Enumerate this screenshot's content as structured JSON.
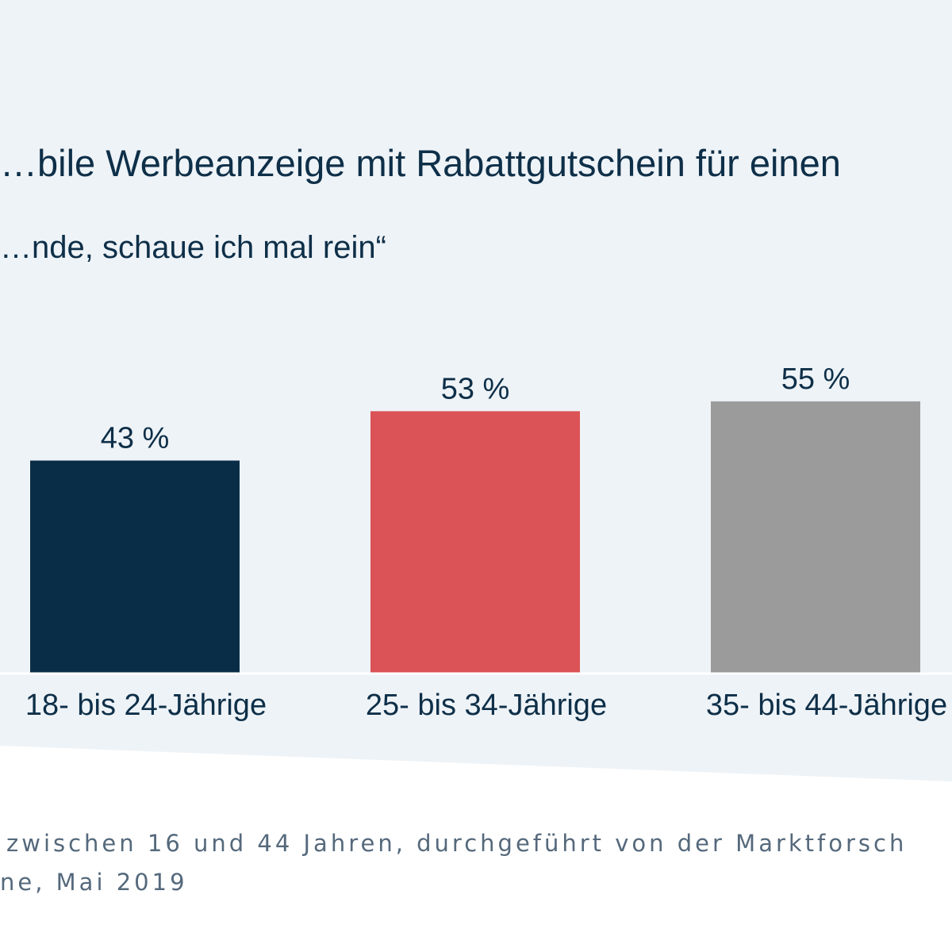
{
  "chart_data": {
    "type": "bar",
    "title": "…bile Werbeanzeige mit Rabattgutschein für einen",
    "subtitle": "…nde, schaue ich mal rein“",
    "categories": [
      "18- bis 24-Jährige",
      "25- bis 34-Jährige",
      "35- bis 44-Jährige"
    ],
    "values": [
      43,
      53,
      55
    ],
    "value_labels": [
      "43 %",
      "53 %",
      "55 %"
    ],
    "colors": [
      "#0a2d47",
      "#db5356",
      "#9b9b9b"
    ],
    "xlabel": "",
    "ylabel": "",
    "ylim": [
      0,
      100
    ],
    "grid": false,
    "legend": "none"
  },
  "footnote": {
    "line1": "zwischen 16 und 44 Jahren, durchgeführt von der Marktforsch",
    "line2": "ne, Mai 2019"
  },
  "colors": {
    "panel_background": "#eef3f7",
    "page_background": "#ffffff",
    "text": "#0e2f48",
    "footnote_text": "#55697c"
  }
}
